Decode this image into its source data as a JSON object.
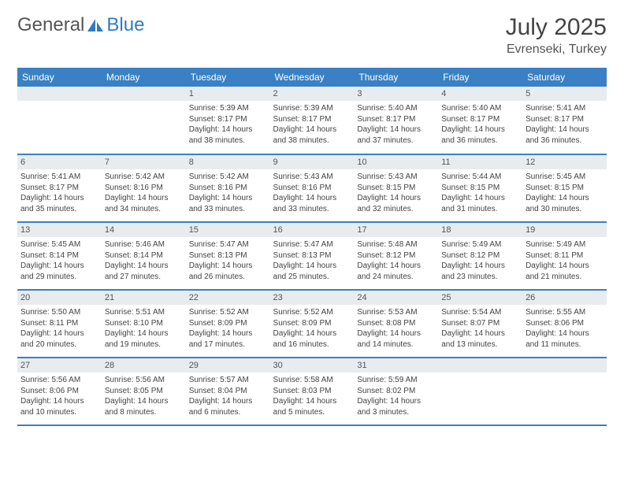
{
  "brand": {
    "part1": "General",
    "part2": "Blue"
  },
  "title": "July 2025",
  "location": "Evrenseki, Turkey",
  "colors": {
    "header_bg": "#3a80c4",
    "header_text": "#ffffff",
    "daynum_bg": "#e8ecef",
    "row_border": "#3a80c4",
    "body_text": "#444444",
    "brand_gray": "#555555",
    "brand_blue": "#2f7bc4"
  },
  "weekdays": [
    "Sunday",
    "Monday",
    "Tuesday",
    "Wednesday",
    "Thursday",
    "Friday",
    "Saturday"
  ],
  "weeks": [
    [
      {
        "day": "",
        "sunrise": "",
        "sunset": "",
        "daylight": ""
      },
      {
        "day": "",
        "sunrise": "",
        "sunset": "",
        "daylight": ""
      },
      {
        "day": "1",
        "sunrise": "Sunrise: 5:39 AM",
        "sunset": "Sunset: 8:17 PM",
        "daylight": "Daylight: 14 hours and 38 minutes."
      },
      {
        "day": "2",
        "sunrise": "Sunrise: 5:39 AM",
        "sunset": "Sunset: 8:17 PM",
        "daylight": "Daylight: 14 hours and 38 minutes."
      },
      {
        "day": "3",
        "sunrise": "Sunrise: 5:40 AM",
        "sunset": "Sunset: 8:17 PM",
        "daylight": "Daylight: 14 hours and 37 minutes."
      },
      {
        "day": "4",
        "sunrise": "Sunrise: 5:40 AM",
        "sunset": "Sunset: 8:17 PM",
        "daylight": "Daylight: 14 hours and 36 minutes."
      },
      {
        "day": "5",
        "sunrise": "Sunrise: 5:41 AM",
        "sunset": "Sunset: 8:17 PM",
        "daylight": "Daylight: 14 hours and 36 minutes."
      }
    ],
    [
      {
        "day": "6",
        "sunrise": "Sunrise: 5:41 AM",
        "sunset": "Sunset: 8:17 PM",
        "daylight": "Daylight: 14 hours and 35 minutes."
      },
      {
        "day": "7",
        "sunrise": "Sunrise: 5:42 AM",
        "sunset": "Sunset: 8:16 PM",
        "daylight": "Daylight: 14 hours and 34 minutes."
      },
      {
        "day": "8",
        "sunrise": "Sunrise: 5:42 AM",
        "sunset": "Sunset: 8:16 PM",
        "daylight": "Daylight: 14 hours and 33 minutes."
      },
      {
        "day": "9",
        "sunrise": "Sunrise: 5:43 AM",
        "sunset": "Sunset: 8:16 PM",
        "daylight": "Daylight: 14 hours and 33 minutes."
      },
      {
        "day": "10",
        "sunrise": "Sunrise: 5:43 AM",
        "sunset": "Sunset: 8:15 PM",
        "daylight": "Daylight: 14 hours and 32 minutes."
      },
      {
        "day": "11",
        "sunrise": "Sunrise: 5:44 AM",
        "sunset": "Sunset: 8:15 PM",
        "daylight": "Daylight: 14 hours and 31 minutes."
      },
      {
        "day": "12",
        "sunrise": "Sunrise: 5:45 AM",
        "sunset": "Sunset: 8:15 PM",
        "daylight": "Daylight: 14 hours and 30 minutes."
      }
    ],
    [
      {
        "day": "13",
        "sunrise": "Sunrise: 5:45 AM",
        "sunset": "Sunset: 8:14 PM",
        "daylight": "Daylight: 14 hours and 29 minutes."
      },
      {
        "day": "14",
        "sunrise": "Sunrise: 5:46 AM",
        "sunset": "Sunset: 8:14 PM",
        "daylight": "Daylight: 14 hours and 27 minutes."
      },
      {
        "day": "15",
        "sunrise": "Sunrise: 5:47 AM",
        "sunset": "Sunset: 8:13 PM",
        "daylight": "Daylight: 14 hours and 26 minutes."
      },
      {
        "day": "16",
        "sunrise": "Sunrise: 5:47 AM",
        "sunset": "Sunset: 8:13 PM",
        "daylight": "Daylight: 14 hours and 25 minutes."
      },
      {
        "day": "17",
        "sunrise": "Sunrise: 5:48 AM",
        "sunset": "Sunset: 8:12 PM",
        "daylight": "Daylight: 14 hours and 24 minutes."
      },
      {
        "day": "18",
        "sunrise": "Sunrise: 5:49 AM",
        "sunset": "Sunset: 8:12 PM",
        "daylight": "Daylight: 14 hours and 23 minutes."
      },
      {
        "day": "19",
        "sunrise": "Sunrise: 5:49 AM",
        "sunset": "Sunset: 8:11 PM",
        "daylight": "Daylight: 14 hours and 21 minutes."
      }
    ],
    [
      {
        "day": "20",
        "sunrise": "Sunrise: 5:50 AM",
        "sunset": "Sunset: 8:11 PM",
        "daylight": "Daylight: 14 hours and 20 minutes."
      },
      {
        "day": "21",
        "sunrise": "Sunrise: 5:51 AM",
        "sunset": "Sunset: 8:10 PM",
        "daylight": "Daylight: 14 hours and 19 minutes."
      },
      {
        "day": "22",
        "sunrise": "Sunrise: 5:52 AM",
        "sunset": "Sunset: 8:09 PM",
        "daylight": "Daylight: 14 hours and 17 minutes."
      },
      {
        "day": "23",
        "sunrise": "Sunrise: 5:52 AM",
        "sunset": "Sunset: 8:09 PM",
        "daylight": "Daylight: 14 hours and 16 minutes."
      },
      {
        "day": "24",
        "sunrise": "Sunrise: 5:53 AM",
        "sunset": "Sunset: 8:08 PM",
        "daylight": "Daylight: 14 hours and 14 minutes."
      },
      {
        "day": "25",
        "sunrise": "Sunrise: 5:54 AM",
        "sunset": "Sunset: 8:07 PM",
        "daylight": "Daylight: 14 hours and 13 minutes."
      },
      {
        "day": "26",
        "sunrise": "Sunrise: 5:55 AM",
        "sunset": "Sunset: 8:06 PM",
        "daylight": "Daylight: 14 hours and 11 minutes."
      }
    ],
    [
      {
        "day": "27",
        "sunrise": "Sunrise: 5:56 AM",
        "sunset": "Sunset: 8:06 PM",
        "daylight": "Daylight: 14 hours and 10 minutes."
      },
      {
        "day": "28",
        "sunrise": "Sunrise: 5:56 AM",
        "sunset": "Sunset: 8:05 PM",
        "daylight": "Daylight: 14 hours and 8 minutes."
      },
      {
        "day": "29",
        "sunrise": "Sunrise: 5:57 AM",
        "sunset": "Sunset: 8:04 PM",
        "daylight": "Daylight: 14 hours and 6 minutes."
      },
      {
        "day": "30",
        "sunrise": "Sunrise: 5:58 AM",
        "sunset": "Sunset: 8:03 PM",
        "daylight": "Daylight: 14 hours and 5 minutes."
      },
      {
        "day": "31",
        "sunrise": "Sunrise: 5:59 AM",
        "sunset": "Sunset: 8:02 PM",
        "daylight": "Daylight: 14 hours and 3 minutes."
      },
      {
        "day": "",
        "sunrise": "",
        "sunset": "",
        "daylight": ""
      },
      {
        "day": "",
        "sunrise": "",
        "sunset": "",
        "daylight": ""
      }
    ]
  ]
}
